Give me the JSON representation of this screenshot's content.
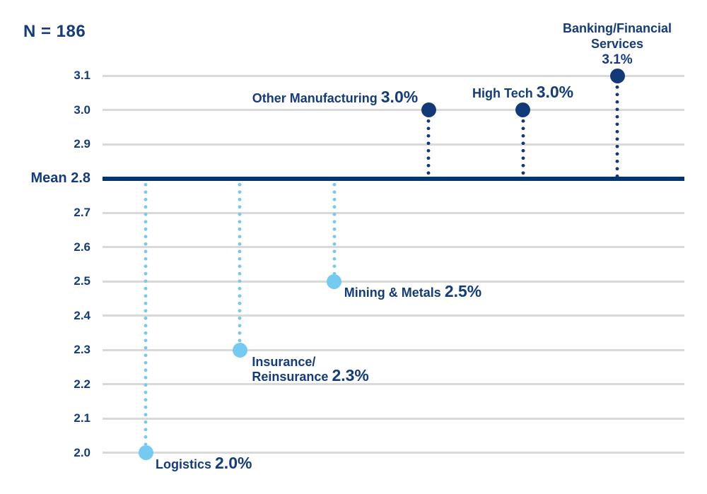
{
  "chart_data": {
    "type": "scatter",
    "title": "N = 186",
    "y_axis": {
      "min": 2.0,
      "max": 3.1,
      "tick_step": 0.1,
      "ticks": [
        "3.1",
        "3.0",
        "2.9",
        "2.7",
        "2.6",
        "2.5",
        "2.4",
        "2.3",
        "2.2",
        "2.1",
        "2.0"
      ],
      "grid": true
    },
    "mean_line": {
      "label": "Mean 2.8",
      "value": 2.8
    },
    "points": [
      {
        "name": "Logistics",
        "name_lines": [
          "Logistics"
        ],
        "value": 2.0,
        "value_label": "2.0%",
        "group": "below-mean",
        "label_layout": "right-of-dot"
      },
      {
        "name": "Insurance/Reinsurance",
        "name_lines": [
          "Insurance/",
          "Reinsurance"
        ],
        "value": 2.3,
        "value_label": "2.3%",
        "group": "below-mean",
        "label_layout": "below-right-of-dot"
      },
      {
        "name": "Mining & Metals",
        "name_lines": [
          "Mining & Metals"
        ],
        "value": 2.5,
        "value_label": "2.5%",
        "group": "below-mean",
        "label_layout": "right-of-dot"
      },
      {
        "name": "Other Manufacturing",
        "name_lines": [
          "Other Manufacturing"
        ],
        "value": 3.0,
        "value_label": "3.0%",
        "group": "above-mean",
        "label_layout": "left-of-dot"
      },
      {
        "name": "High Tech",
        "name_lines": [
          "High Tech"
        ],
        "value": 3.0,
        "value_label": "3.0%",
        "group": "above-mean",
        "label_layout": "above-dot"
      },
      {
        "name": "Banking/Financial Services",
        "name_lines": [
          "Banking/Financial",
          "Services"
        ],
        "value": 3.1,
        "value_label": "3.1%",
        "group": "above-mean",
        "label_layout": "stacked-above-dot"
      }
    ],
    "colors": {
      "above_mean": "#123a78",
      "below_mean": "#74caf0",
      "mean_line": "#003670",
      "text": "#143b7d",
      "gridline": "#d9d9d9"
    },
    "legend": "none"
  }
}
